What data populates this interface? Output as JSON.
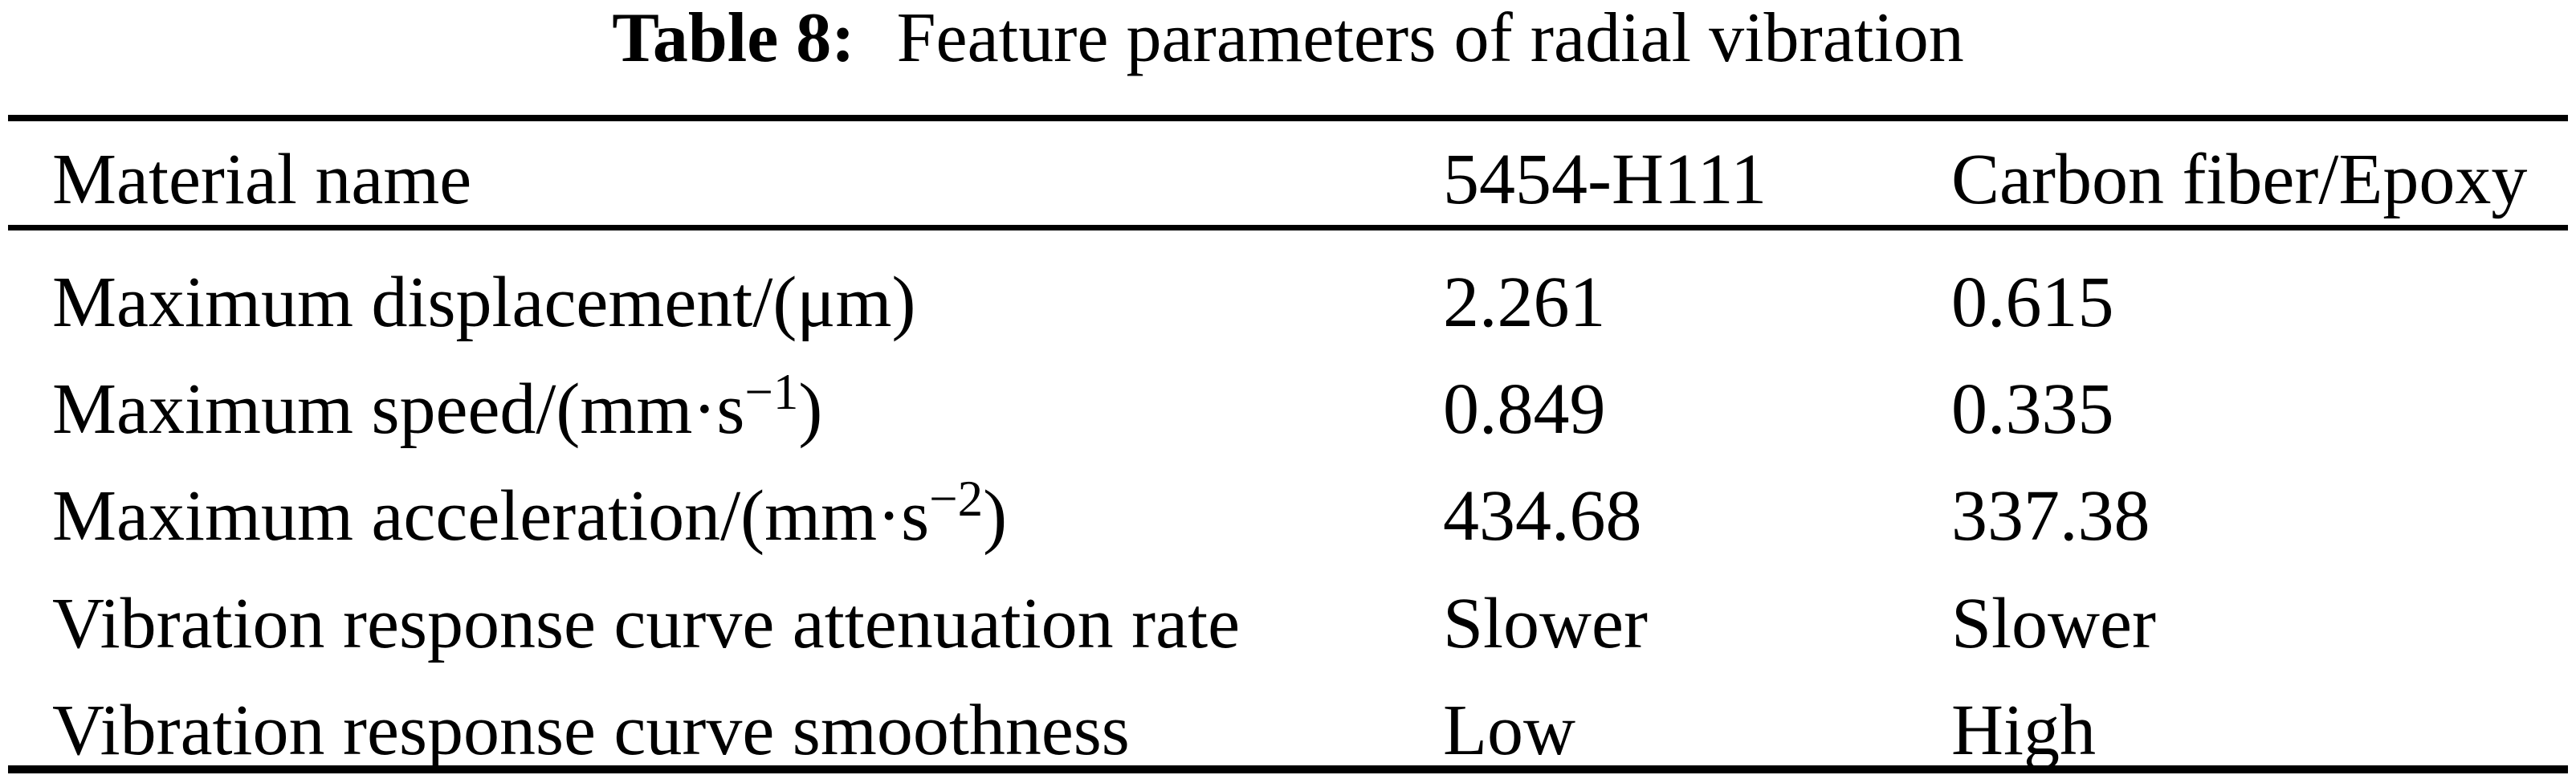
{
  "title": {
    "label": "Table 8:",
    "text": "Feature parameters of radial vibration"
  },
  "table": {
    "columns": [
      "Material name",
      "5454-H111",
      "Carbon fiber/Epoxy"
    ],
    "rows": [
      {
        "label": "Maximum displacement/(μm)",
        "sup": "",
        "suffix": "",
        "col2": "2.261",
        "col3": "0.615"
      },
      {
        "label": "Maximum speed/(mm·s",
        "sup": "−1",
        "suffix": ")",
        "col2": "0.849",
        "col3": "0.335"
      },
      {
        "label": "Maximum acceleration/(mm·s",
        "sup": "−2",
        "suffix": ")",
        "col2": "434.68",
        "col3": "337.38"
      },
      {
        "label": "Vibration response curve attenuation rate",
        "sup": "",
        "suffix": "",
        "col2": "Slower",
        "col3": "Slower"
      },
      {
        "label": "Vibration response curve smoothness",
        "sup": "",
        "suffix": "",
        "col2": "Low",
        "col3": "High"
      }
    ],
    "colors": {
      "text": "#000000",
      "background": "#ffffff",
      "rule": "#000000"
    }
  }
}
